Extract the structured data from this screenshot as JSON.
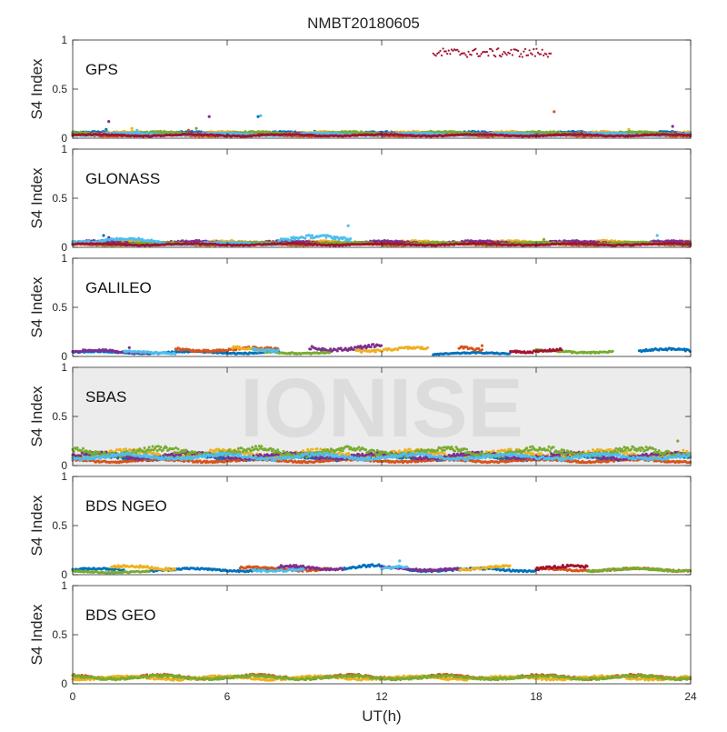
{
  "chart_data": {
    "type": "scatter",
    "title": "NMBT20180605",
    "xlabel": "UT(h)",
    "ylabel": "S4 Index",
    "xlim": [
      0,
      24
    ],
    "ylim": [
      0,
      1
    ],
    "xticks": [
      0,
      6,
      12,
      18,
      24
    ],
    "xtick_labels": [
      "0",
      "6",
      "12",
      "18",
      "24"
    ],
    "yticks": [
      0,
      0.5,
      1
    ],
    "ytick_labels": [
      "0",
      "0.5",
      "1"
    ],
    "watermark": "IONISE",
    "watermark_panel": 3,
    "grid": false,
    "colors": [
      "#0072BD",
      "#D95319",
      "#EDB120",
      "#7E2F8E",
      "#77AC30",
      "#4DBEEE",
      "#A2142F"
    ],
    "panels": [
      {
        "label": "GPS",
        "series": [
          {
            "color": "#0072BD",
            "segments": [
              [
                0.0,
                24.0,
                0.05
              ]
            ],
            "spikes": [
              [
                1.3,
                0.09
              ],
              [
                7.2,
                0.22
              ],
              [
                9.4,
                0.07
              ]
            ]
          },
          {
            "color": "#D95319",
            "segments": [
              [
                0.0,
                24.0,
                0.03
              ]
            ],
            "spikes": [
              [
                18.7,
                0.27
              ],
              [
                4.5,
                0.08
              ]
            ]
          },
          {
            "color": "#EDB120",
            "segments": [
              [
                0.0,
                24.0,
                0.05
              ]
            ],
            "spikes": [
              [
                2.3,
                0.1
              ],
              [
                21.6,
                0.09
              ]
            ]
          },
          {
            "color": "#7E2F8E",
            "segments": [
              [
                0.0,
                24.0,
                0.04
              ]
            ],
            "spikes": [
              [
                1.4,
                0.17
              ],
              [
                5.3,
                0.22
              ],
              [
                23.3,
                0.12
              ]
            ]
          },
          {
            "color": "#77AC30",
            "segments": [
              [
                0.0,
                24.0,
                0.05
              ]
            ],
            "spikes": [
              [
                4.8,
                0.1
              ],
              [
                13.9,
                0.07
              ]
            ]
          },
          {
            "color": "#4DBEEE",
            "segments": [
              [
                0.0,
                24.0,
                0.04
              ]
            ],
            "spikes": [
              [
                7.3,
                0.23
              ],
              [
                2.5,
                0.08
              ]
            ]
          },
          {
            "color": "#A2142F",
            "segments": [
              [
                14.0,
                18.6,
                0.87
              ],
              [
                0.0,
                24.0,
                0.03
              ]
            ],
            "spikes": []
          }
        ]
      },
      {
        "label": "GLONASS",
        "series": [
          {
            "color": "#0072BD",
            "segments": [
              [
                0.0,
                24.0,
                0.04
              ]
            ],
            "spikes": [
              [
                1.2,
                0.12
              ]
            ]
          },
          {
            "color": "#D95319",
            "segments": [
              [
                0.0,
                24.0,
                0.03
              ]
            ],
            "spikes": []
          },
          {
            "color": "#EDB120",
            "segments": [
              [
                0.0,
                24.0,
                0.05
              ]
            ],
            "spikes": [
              [
                2.0,
                0.07
              ]
            ]
          },
          {
            "color": "#7E2F8E",
            "segments": [
              [
                0.0,
                24.0,
                0.05
              ]
            ],
            "spikes": [
              [
                1.4,
                0.1
              ]
            ]
          },
          {
            "color": "#77AC30",
            "segments": [
              [
                0.0,
                24.0,
                0.04
              ]
            ],
            "spikes": [
              [
                18.3,
                0.08
              ]
            ]
          },
          {
            "color": "#4DBEEE",
            "segments": [
              [
                0.0,
                3.5,
                0.07
              ],
              [
                3.5,
                8.0,
                0.04
              ],
              [
                8.0,
                10.8,
                0.09
              ]
            ],
            "spikes": [
              [
                10.7,
                0.22
              ],
              [
                22.7,
                0.12
              ]
            ]
          },
          {
            "color": "#A2142F",
            "segments": [
              [
                0.0,
                24.0,
                0.03
              ]
            ],
            "spikes": []
          }
        ]
      },
      {
        "label": "GALILEO",
        "series": [
          {
            "color": "#0072BD",
            "segments": [
              [
                0.0,
                3.0,
                0.04
              ],
              [
                3.0,
                8.0,
                0.04
              ],
              [
                14.0,
                17.0,
                0.03
              ],
              [
                22.0,
                24.0,
                0.06
              ]
            ],
            "spikes": []
          },
          {
            "color": "#D95319",
            "segments": [
              [
                4.0,
                8.0,
                0.07
              ],
              [
                15.0,
                15.9,
                0.08
              ]
            ],
            "spikes": [
              [
                15.9,
                0.11
              ]
            ]
          },
          {
            "color": "#EDB120",
            "segments": [
              [
                6.2,
                7.5,
                0.08
              ],
              [
                11.0,
                13.8,
                0.07
              ]
            ],
            "spikes": []
          },
          {
            "color": "#7E2F8E",
            "segments": [
              [
                0.0,
                3.0,
                0.05
              ],
              [
                9.2,
                12.0,
                0.09
              ]
            ],
            "spikes": [
              [
                2.2,
                0.09
              ]
            ]
          },
          {
            "color": "#77AC30",
            "segments": [
              [
                7.5,
                10.0,
                0.04
              ],
              [
                18.0,
                21.0,
                0.05
              ]
            ],
            "spikes": []
          },
          {
            "color": "#4DBEEE",
            "segments": [
              [
                2.0,
                4.0,
                0.04
              ],
              [
                7.0,
                8.0,
                0.08
              ]
            ],
            "spikes": []
          },
          {
            "color": "#A2142F",
            "segments": [
              [
                17.0,
                19.0,
                0.06
              ]
            ],
            "spikes": []
          }
        ]
      },
      {
        "label": "SBAS",
        "series": [
          {
            "color": "#0072BD",
            "segments": [
              [
                0.0,
                24.0,
                0.08
              ]
            ],
            "spikes": []
          },
          {
            "color": "#D95319",
            "segments": [
              [
                0.0,
                24.0,
                0.05
              ]
            ],
            "spikes": []
          },
          {
            "color": "#EDB120",
            "segments": [
              [
                0.0,
                24.0,
                0.12
              ]
            ],
            "spikes": []
          },
          {
            "color": "#7E2F8E",
            "segments": [
              [
                0.0,
                24.0,
                0.1
              ]
            ],
            "spikes": []
          },
          {
            "color": "#77AC30",
            "segments": [
              [
                0.0,
                24.0,
                0.14
              ]
            ],
            "spikes": [
              [
                23.5,
                0.25
              ]
            ]
          },
          {
            "color": "#4DBEEE",
            "segments": [
              [
                0.0,
                24.0,
                0.09
              ]
            ],
            "spikes": []
          },
          {
            "color": "#A2142F",
            "segments": [],
            "spikes": []
          }
        ]
      },
      {
        "label": "BDS NGEO",
        "series": [
          {
            "color": "#0072BD",
            "segments": [
              [
                0.0,
                2.0,
                0.05
              ],
              [
                3.0,
                8.0,
                0.05
              ],
              [
                10.5,
                12.0,
                0.08
              ],
              [
                13.0,
                18.0,
                0.05
              ]
            ],
            "spikes": []
          },
          {
            "color": "#D95319",
            "segments": [
              [
                6.5,
                10.0,
                0.06
              ],
              [
                18.0,
                24.0,
                0.05
              ]
            ],
            "spikes": []
          },
          {
            "color": "#EDB120",
            "segments": [
              [
                1.5,
                4.0,
                0.07
              ],
              [
                15.0,
                17.0,
                0.07
              ]
            ],
            "spikes": []
          },
          {
            "color": "#7E2F8E",
            "segments": [
              [
                8.0,
                10.5,
                0.07
              ],
              [
                12.0,
                15.0,
                0.06
              ]
            ],
            "spikes": []
          },
          {
            "color": "#77AC30",
            "segments": [
              [
                0.0,
                3.0,
                0.03
              ],
              [
                20.0,
                24.0,
                0.05
              ]
            ],
            "spikes": []
          },
          {
            "color": "#4DBEEE",
            "segments": [
              [
                7.0,
                9.0,
                0.05
              ],
              [
                12.0,
                13.0,
                0.07
              ]
            ],
            "spikes": [
              [
                12.7,
                0.14
              ]
            ]
          },
          {
            "color": "#A2142F",
            "segments": [
              [
                18.0,
                20.0,
                0.07
              ]
            ],
            "spikes": []
          }
        ]
      },
      {
        "label": "BDS GEO",
        "series": [
          {
            "color": "#0072BD",
            "segments": [],
            "spikes": []
          },
          {
            "color": "#D95319",
            "segments": [
              [
                0.0,
                24.0,
                0.07
              ]
            ],
            "spikes": []
          },
          {
            "color": "#EDB120",
            "segments": [
              [
                0.0,
                24.0,
                0.06
              ]
            ],
            "spikes": []
          },
          {
            "color": "#7E2F8E",
            "segments": [],
            "spikes": []
          },
          {
            "color": "#77AC30",
            "segments": [
              [
                0.0,
                24.0,
                0.065
              ]
            ],
            "spikes": []
          },
          {
            "color": "#4DBEEE",
            "segments": [],
            "spikes": []
          },
          {
            "color": "#A2142F",
            "segments": [],
            "spikes": []
          }
        ]
      }
    ]
  }
}
